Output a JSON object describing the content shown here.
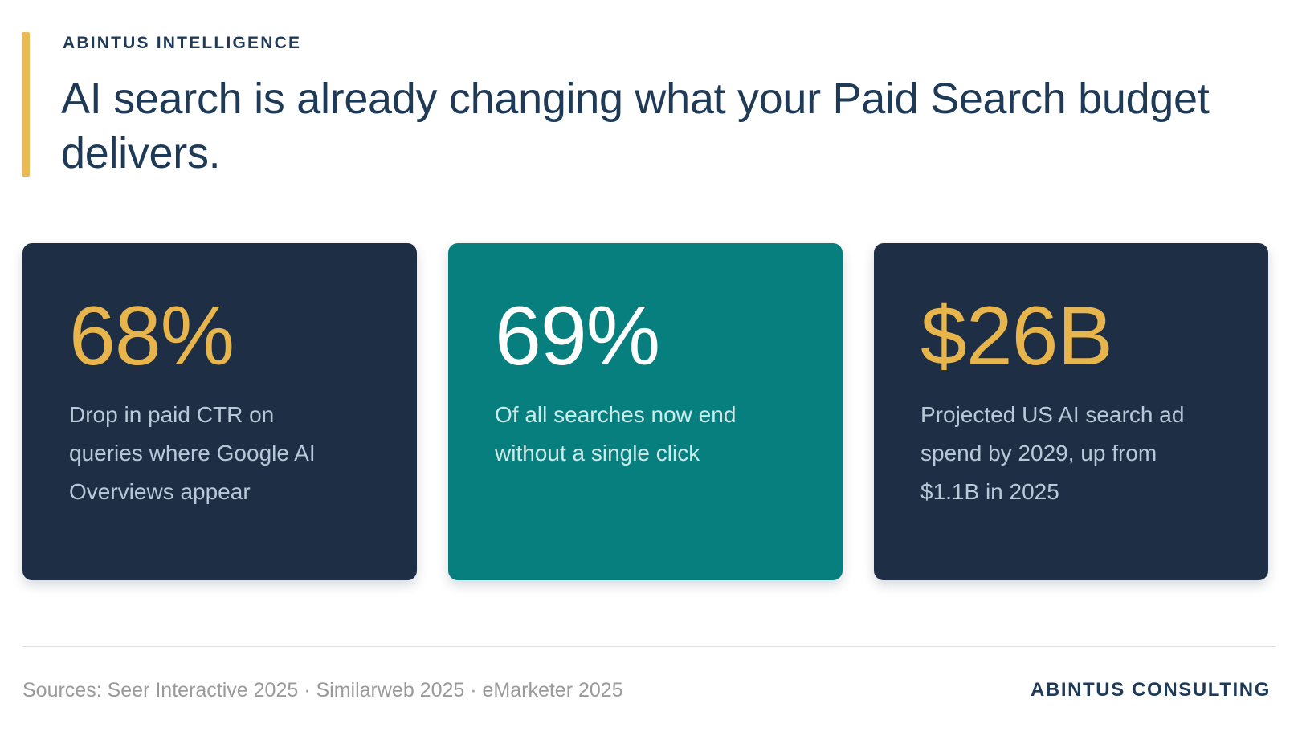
{
  "colors": {
    "page_background": "#FFFFFF",
    "accent_bar_gold": "#EBBA55",
    "heading_navy": "#1E3A57",
    "card_navy": "#1E2F45",
    "card_teal": "#077F7F",
    "stat_gold": "#E8B54C",
    "stat_white": "#FFFFFF",
    "desc_on_navy": "#B8C8D8",
    "desc_on_teal": "#CCEAE7",
    "sources_gray": "#9A9A9A",
    "divider_gray": "#E2E2E2"
  },
  "header": {
    "eyebrow": "ABINTUS INTELLIGENCE",
    "headline": "AI search is already changing what your Paid Search budget delivers."
  },
  "cards": [
    {
      "stat": "68%",
      "description": "Drop in paid CTR on\nqueries where Google AI\nOverviews appear",
      "background": "#1E2F45",
      "stat_color": "#E8B54C",
      "description_color": "#B8C8D8"
    },
    {
      "stat": "69%",
      "description": "Of all searches now end\nwithout a single click",
      "background": "#077F7F",
      "stat_color": "#FFFFFF",
      "description_color": "#CCEAE7"
    },
    {
      "stat": "$26B",
      "description": "Projected US AI search ad\nspend by 2029, up from\n$1.1B in 2025",
      "background": "#1E2F45",
      "stat_color": "#E8B54C",
      "description_color": "#B8C8D8"
    }
  ],
  "footer": {
    "sources": "Sources: Seer Interactive 2025 · Similarweb 2025 · eMarketer 2025",
    "brand": "ABINTUS CONSULTING"
  }
}
